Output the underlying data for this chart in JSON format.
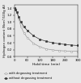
{
  "title": "",
  "xlabel": "Hold time (min)",
  "ylabel": "Hydrogen content (Ncm³/100g Al)",
  "xlim": [
    0,
    300
  ],
  "ylim": [
    0,
    1.5
  ],
  "yticks": [
    0,
    0.2,
    0.4,
    0.6,
    0.8,
    1.0,
    1.2,
    1.4
  ],
  "xticks": [
    0,
    60,
    120,
    180,
    240,
    300
  ],
  "with_degassing_x": [
    0,
    5,
    10,
    20,
    30,
    45,
    60,
    90,
    120,
    150,
    180,
    210,
    240,
    270,
    300
  ],
  "with_degassing_y": [
    1.42,
    1.38,
    1.3,
    1.1,
    0.88,
    0.68,
    0.55,
    0.38,
    0.28,
    0.22,
    0.19,
    0.17,
    0.16,
    0.15,
    0.15
  ],
  "without_degassing_x": [
    0,
    5,
    10,
    20,
    30,
    45,
    60,
    90,
    120,
    150,
    180,
    210,
    240,
    270,
    300
  ],
  "without_degassing_y": [
    1.4,
    1.36,
    1.3,
    1.15,
    1.0,
    0.86,
    0.76,
    0.6,
    0.5,
    0.44,
    0.4,
    0.37,
    0.35,
    0.33,
    0.32
  ],
  "color_with": "#999999",
  "color_without": "#333333",
  "legend_with": "with degassing treatment",
  "legend_without": "without degassing treatment",
  "bg_color": "#e8e8e8"
}
